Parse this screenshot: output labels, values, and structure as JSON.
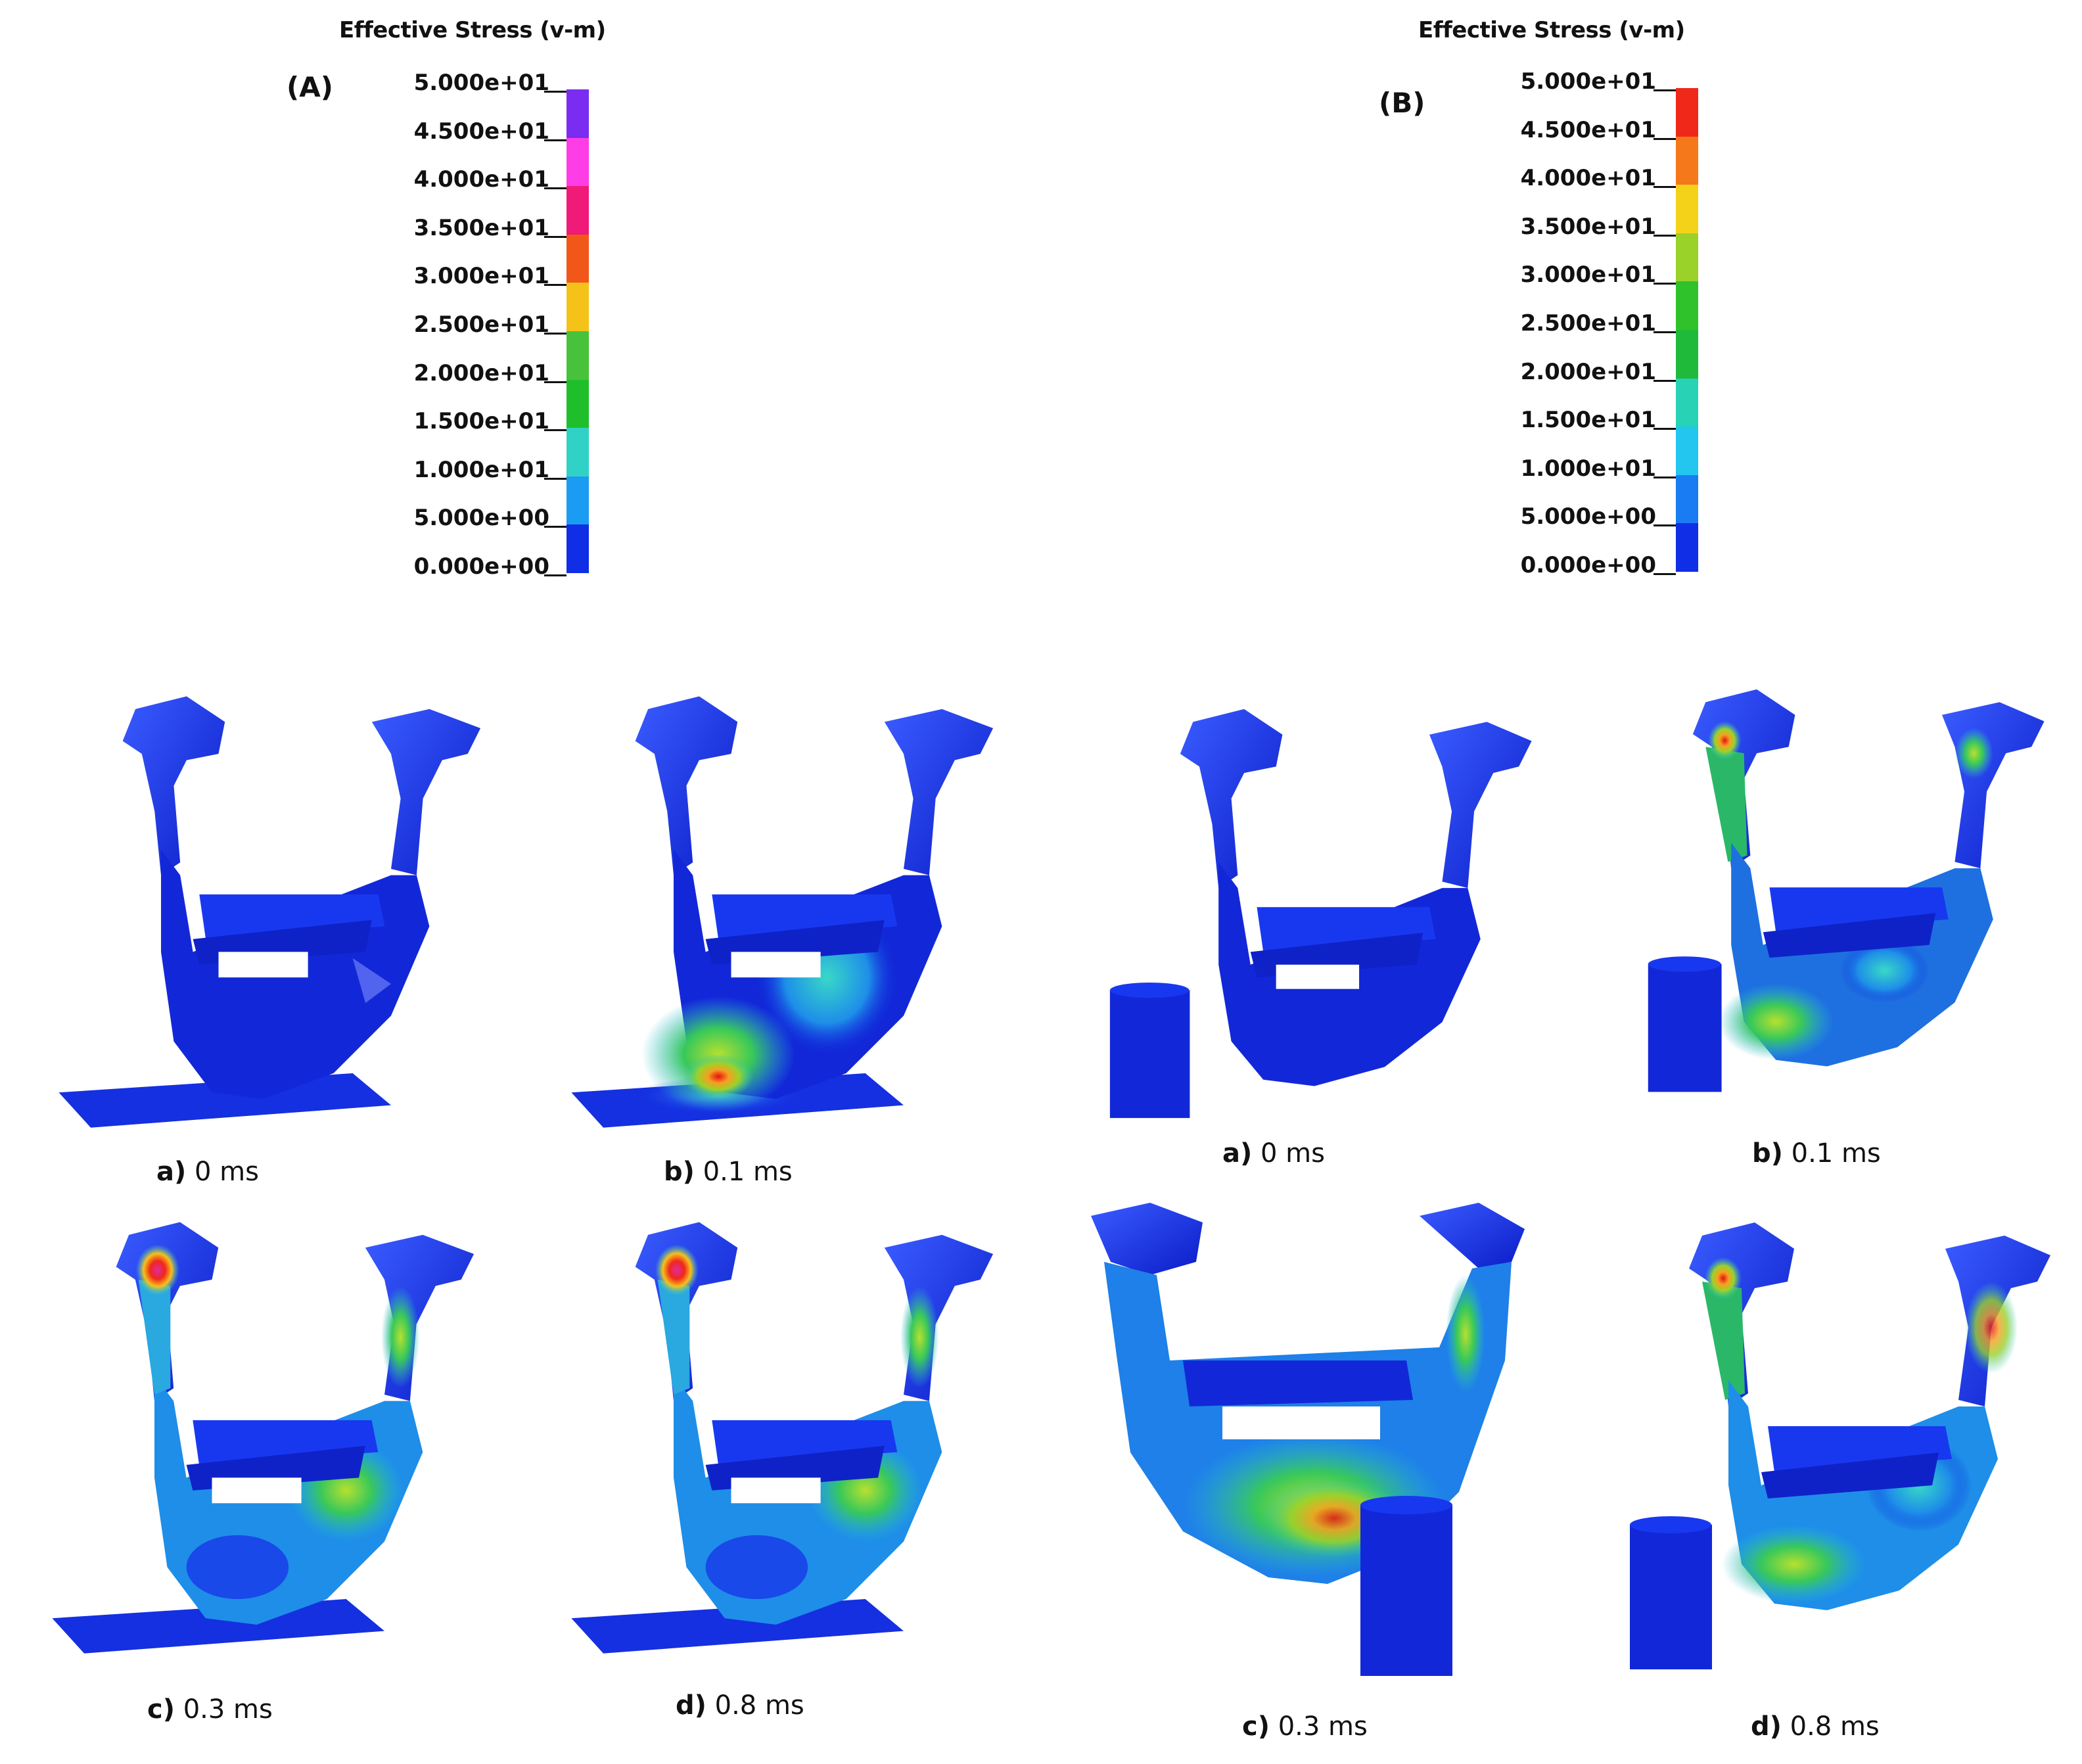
{
  "panels": {
    "A": {
      "label": "(A)",
      "legend_title": "Effective Stress (v-m)",
      "ticks": [
        "5.000e+01",
        "4.500e+01",
        "4.000e+01",
        "3.500e+01",
        "3.000e+01",
        "2.500e+01",
        "2.000e+01",
        "1.500e+01",
        "1.000e+01",
        "5.000e+00",
        "0.000e+00"
      ],
      "colors": [
        "#7a2cf0",
        "#ff3de6",
        "#f01a78",
        "#f2571a",
        "#f5c21a",
        "#47c23a",
        "#1fbf2c",
        "#30d2c6",
        "#1a9cf2",
        "#0f2ee6"
      ]
    },
    "B": {
      "label": "(B)",
      "legend_title": "Effective Stress (v-m)",
      "ticks": [
        "5.000e+01",
        "4.500e+01",
        "4.000e+01",
        "3.500e+01",
        "3.000e+01",
        "2.500e+01",
        "2.000e+01",
        "1.500e+01",
        "1.000e+01",
        "5.000e+00",
        "0.000e+00"
      ],
      "colors": [
        "#f0281a",
        "#f5781a",
        "#f5d21a",
        "#9ad22a",
        "#30c22a",
        "#1fba3a",
        "#28d2b4",
        "#22c6ee",
        "#1a7cf2",
        "#0f2ee6"
      ]
    }
  },
  "captions": {
    "A": [
      {
        "letter": "a)",
        "time": "0 ms"
      },
      {
        "letter": "b)",
        "time": "0.1 ms"
      },
      {
        "letter": "c)",
        "time": "0.3 ms"
      },
      {
        "letter": "d)",
        "time": "0.8 ms"
      }
    ],
    "B": [
      {
        "letter": "a)",
        "time": "0 ms"
      },
      {
        "letter": "b)",
        "time": "0.1 ms"
      },
      {
        "letter": "c)",
        "time": "0.3 ms"
      },
      {
        "letter": "d)",
        "time": "0.8 ms"
      }
    ]
  }
}
